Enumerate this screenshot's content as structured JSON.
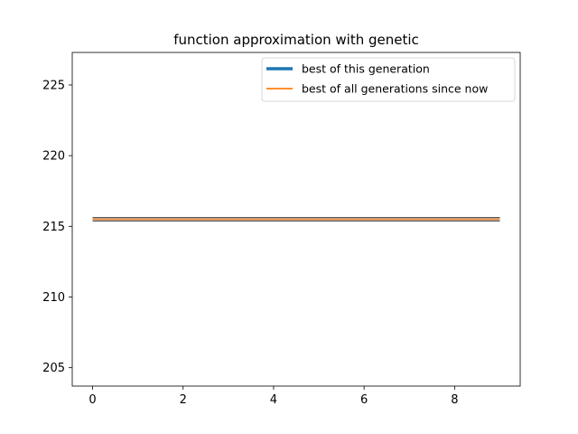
{
  "chart_data": {
    "type": "line",
    "title": "function approximation with genetic",
    "xlabel": "",
    "ylabel": "",
    "xlim": [
      -0.45,
      9.45
    ],
    "ylim": [
      203.7,
      227.3
    ],
    "xticks": [
      0,
      2,
      4,
      6,
      8
    ],
    "yticks": [
      205,
      210,
      215,
      220,
      225
    ],
    "grid": false,
    "legend_position": "top-right",
    "x": [
      0,
      1,
      2,
      3,
      4,
      5,
      6,
      7,
      8,
      9
    ],
    "series": [
      {
        "name": "best of this generation",
        "color": "#1f77b4",
        "values": [
          215.5,
          215.5,
          215.5,
          215.5,
          215.5,
          215.5,
          215.5,
          215.5,
          215.5,
          215.5
        ]
      },
      {
        "name": "best of all generations since now",
        "color": "#ff7f0e",
        "values": [
          215.5,
          215.5,
          215.5,
          215.5,
          215.5,
          215.5,
          215.5,
          215.5,
          215.5,
          215.5
        ]
      }
    ]
  }
}
